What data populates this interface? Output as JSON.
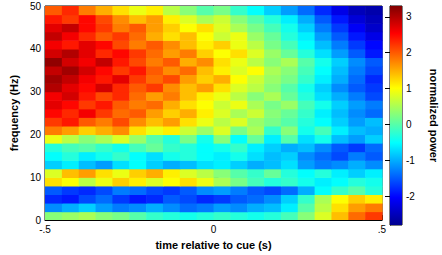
{
  "chart_data": {
    "type": "heatmap",
    "x_label": "time relative to cue (s)",
    "y_label": "frequency (Hz)",
    "xlim": [
      -0.5,
      0.5
    ],
    "xticks": [
      {
        "value": -0.5,
        "label": "-.5"
      },
      0,
      {
        "value": 0.5,
        "label": ".5"
      }
    ],
    "ylim": [
      0,
      50
    ],
    "yticks": [
      0,
      10,
      20,
      30,
      40,
      50
    ],
    "x_edges": [
      -0.5,
      -0.45,
      -0.4,
      -0.35,
      -0.3,
      -0.25,
      -0.2,
      -0.15,
      -0.1,
      -0.05,
      0,
      0.05,
      0.1,
      0.15,
      0.2,
      0.25,
      0.3,
      0.35,
      0.4,
      0.45,
      0.5
    ],
    "y_edges": [
      0,
      2,
      4,
      6,
      8,
      10,
      12,
      14,
      16,
      18,
      20,
      22,
      24,
      26,
      28,
      30,
      32,
      34,
      36,
      38,
      40,
      42,
      44,
      46,
      48,
      50
    ],
    "values": [
      [
        0.3,
        0.4,
        0.5,
        0.3,
        0.2,
        0.0,
        -0.2,
        -0.3,
        -0.4,
        -0.3,
        -0.2,
        -0.3,
        -0.4,
        -0.3,
        -0.1,
        0.3,
        0.8,
        1.4,
        1.9,
        2.2
      ],
      [
        -1.2,
        -1.0,
        -0.8,
        -1.1,
        -1.3,
        -1.2,
        -1.0,
        -1.2,
        -1.4,
        -1.3,
        -1.1,
        -1.2,
        -1.0,
        -0.9,
        -0.6,
        0.0,
        0.6,
        1.2,
        1.6,
        1.8
      ],
      [
        -1.8,
        -1.9,
        -1.6,
        -1.4,
        -1.7,
        -1.9,
        -1.8,
        -1.5,
        -1.6,
        -1.8,
        -1.7,
        -1.5,
        -1.4,
        -1.2,
        -0.8,
        -0.2,
        0.5,
        1.0,
        1.3,
        1.1
      ],
      [
        -1.5,
        -1.7,
        -1.8,
        -1.6,
        -1.3,
        -1.4,
        -1.6,
        -1.7,
        -1.5,
        -1.2,
        -1.1,
        -1.3,
        -1.5,
        -1.6,
        -1.4,
        -1.0,
        -0.5,
        -0.2,
        0.0,
        -0.3
      ],
      [
        1.2,
        1.0,
        0.6,
        0.9,
        1.3,
        1.1,
        0.8,
        1.0,
        1.2,
        0.9,
        0.5,
        0.2,
        -0.1,
        -0.3,
        -0.2,
        -0.4,
        -0.6,
        -0.5,
        -0.3,
        -0.4
      ],
      [
        0.8,
        1.4,
        1.6,
        1.2,
        0.9,
        1.3,
        1.5,
        1.1,
        0.8,
        0.6,
        0.3,
        0.0,
        -0.2,
        0.1,
        -0.3,
        -0.5,
        -0.3,
        -0.6,
        -0.8,
        -0.6
      ],
      [
        -0.8,
        -0.6,
        -0.9,
        -1.1,
        -0.7,
        -0.5,
        -0.8,
        -1.0,
        -0.9,
        -0.7,
        -0.6,
        -0.8,
        -1.0,
        -0.9,
        -0.7,
        -1.1,
        -1.3,
        -1.2,
        -1.0,
        -1.2
      ],
      [
        -0.5,
        -0.3,
        -0.6,
        -0.4,
        -0.2,
        -0.5,
        -0.7,
        -0.4,
        -0.3,
        -0.5,
        -0.6,
        -0.4,
        -0.7,
        -0.9,
        -0.8,
        -1.2,
        -1.4,
        -1.6,
        -1.3,
        -1.5
      ],
      [
        -0.3,
        -0.1,
        0.0,
        -0.2,
        -0.4,
        -0.1,
        0.1,
        -0.2,
        -0.3,
        -0.5,
        -0.4,
        -0.2,
        -0.6,
        -0.8,
        -1.0,
        -0.9,
        -1.2,
        -1.5,
        -1.7,
        -1.4
      ],
      [
        0.9,
        0.6,
        0.3,
        0.5,
        0.8,
        0.4,
        0.0,
        -0.3,
        0.2,
        -0.4,
        0.3,
        -0.5,
        0.1,
        -0.6,
        0.0,
        -0.7,
        -0.4,
        -0.9,
        -1.1,
        -0.8
      ],
      [
        1.8,
        1.6,
        1.3,
        1.5,
        1.7,
        1.2,
        0.9,
        1.1,
        0.7,
        0.4,
        0.8,
        0.2,
        0.5,
        -0.2,
        0.3,
        -0.4,
        -0.1,
        -0.6,
        -0.9,
        -1.0
      ],
      [
        2.2,
        2.4,
        2.0,
        1.8,
        2.1,
        1.7,
        1.4,
        1.6,
        1.2,
        0.9,
        0.6,
        0.8,
        0.4,
        0.2,
        0.0,
        -0.3,
        -0.5,
        -0.8,
        -1.1,
        -0.9
      ],
      [
        2.5,
        2.3,
        2.6,
        2.2,
        1.9,
        2.0,
        1.6,
        1.3,
        1.5,
        1.1,
        0.8,
        0.5,
        0.7,
        0.3,
        0.1,
        -0.2,
        -0.6,
        -0.9,
        -1.2,
        -1.4
      ],
      [
        2.7,
        2.5,
        2.2,
        2.4,
        2.0,
        1.8,
        1.9,
        1.5,
        1.2,
        1.0,
        0.7,
        0.9,
        0.5,
        0.2,
        0.4,
        -0.1,
        -0.4,
        -0.8,
        -1.1,
        -1.3
      ],
      [
        2.6,
        2.8,
        2.4,
        2.1,
        2.3,
        1.9,
        1.6,
        1.8,
        1.4,
        1.1,
        0.9,
        0.6,
        0.3,
        0.5,
        0.1,
        -0.3,
        -0.7,
        -1.0,
        -1.3,
        -1.6
      ],
      [
        3.0,
        2.7,
        2.5,
        2.8,
        2.3,
        2.0,
        2.2,
        1.7,
        1.4,
        1.6,
        1.2,
        0.8,
        0.6,
        0.3,
        0.0,
        -0.4,
        -0.8,
        -1.2,
        -1.5,
        -1.7
      ],
      [
        3.1,
        2.9,
        2.6,
        2.4,
        2.7,
        2.2,
        1.9,
        2.1,
        1.6,
        1.3,
        1.5,
        1.0,
        0.7,
        0.4,
        0.2,
        -0.2,
        -0.6,
        -1.0,
        -1.4,
        -1.8
      ],
      [
        2.9,
        3.1,
        2.8,
        2.5,
        2.2,
        2.4,
        2.0,
        1.7,
        1.9,
        1.4,
        1.1,
        0.8,
        1.0,
        0.5,
        0.3,
        -0.1,
        -0.5,
        -0.9,
        -1.3,
        -1.6
      ],
      [
        3.2,
        2.8,
        2.6,
        2.9,
        2.4,
        2.1,
        1.8,
        2.0,
        1.5,
        1.7,
        1.2,
        0.9,
        0.6,
        0.3,
        0.5,
        0.0,
        -0.4,
        -0.8,
        -1.2,
        -1.5
      ],
      [
        2.8,
        3.0,
        2.7,
        2.3,
        2.5,
        2.2,
        1.9,
        1.6,
        1.8,
        1.3,
        1.0,
        1.2,
        0.8,
        0.4,
        0.1,
        -0.3,
        -0.7,
        -1.1,
        -1.5,
        -1.9
      ],
      [
        2.6,
        2.4,
        2.7,
        2.5,
        2.1,
        1.8,
        2.0,
        1.7,
        1.4,
        1.1,
        1.3,
        0.9,
        0.6,
        0.2,
        -0.1,
        -0.5,
        -0.9,
        -1.3,
        -1.7,
        -2.0
      ],
      [
        2.9,
        2.6,
        2.3,
        2.0,
        2.2,
        1.9,
        1.5,
        1.2,
        1.4,
        1.0,
        0.7,
        0.9,
        0.4,
        0.1,
        -0.3,
        -0.6,
        -1.1,
        -1.5,
        -1.9,
        -2.2
      ],
      [
        2.7,
        2.9,
        2.5,
        2.2,
        1.8,
        2.0,
        1.6,
        1.3,
        1.0,
        1.2,
        0.8,
        0.5,
        0.2,
        -0.1,
        -0.4,
        -0.8,
        -1.3,
        -1.7,
        -2.1,
        -2.4
      ],
      [
        2.4,
        2.2,
        2.5,
        2.1,
        1.7,
        1.4,
        1.6,
        1.1,
        0.8,
        0.5,
        0.7,
        0.3,
        0.0,
        -0.3,
        -0.6,
        -1.0,
        -1.5,
        -1.9,
        -2.3,
        -2.5
      ],
      [
        2.0,
        2.3,
        1.8,
        1.5,
        1.2,
        0.9,
        1.1,
        0.6,
        0.3,
        0.0,
        0.2,
        -0.2,
        -0.5,
        -0.8,
        -1.1,
        -1.4,
        -1.8,
        -2.2,
        -2.5,
        -2.6
      ]
    ],
    "colorbar_label": "normalized power",
    "colorbar_range": [
      -2.8,
      3.3
    ],
    "colorbar_ticks": [
      -2,
      -1,
      0,
      1,
      2,
      3
    ]
  }
}
